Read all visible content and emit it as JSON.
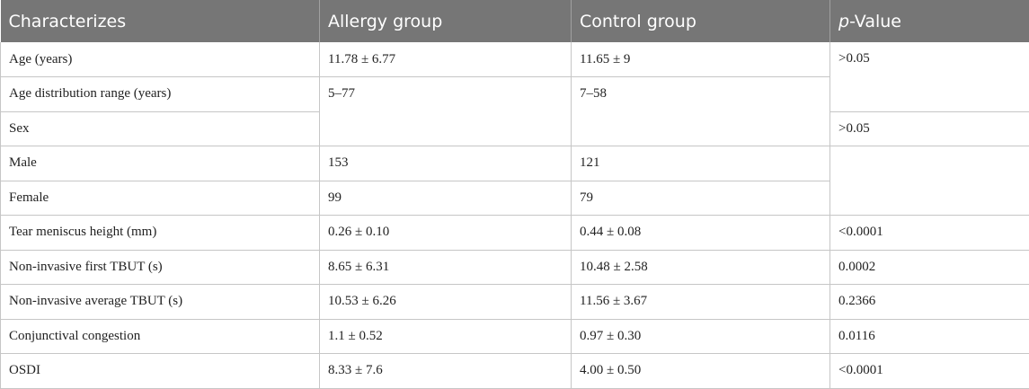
{
  "headers": {
    "characterizes": "Characterizes",
    "allergy": "Allergy group",
    "control": "Control group",
    "p_italic": "p",
    "p_rest": "-Value"
  },
  "rows": {
    "age": {
      "label": "Age (years)",
      "allergy": "11.78 ± 6.77",
      "control": "11.65 ± 9",
      "p": ">0.05"
    },
    "age_range": {
      "label": "Age distribution range (years)",
      "allergy": "5–77",
      "control": "7–58"
    },
    "sex": {
      "label": "Sex",
      "p": ">0.05"
    },
    "male": {
      "label": "Male",
      "allergy": "153",
      "control": "121"
    },
    "female": {
      "label": "Female",
      "allergy": "99",
      "control": "79"
    },
    "tmh": {
      "label": "Tear meniscus height (mm)",
      "allergy": "0.26 ± 0.10",
      "control": "0.44 ± 0.08",
      "p": "<0.0001"
    },
    "first_tbut": {
      "label": "Non-invasive first TBUT (s)",
      "allergy": "8.65 ± 6.31",
      "control": "10.48 ± 2.58",
      "p": "0.0002"
    },
    "avg_tbut": {
      "label": "Non-invasive average TBUT (s)",
      "allergy": "10.53 ± 6.26",
      "control": "11.56 ± 3.67",
      "p": "0.2366"
    },
    "congestion": {
      "label": "Conjunctival congestion",
      "allergy": "1.1 ± 0.52",
      "control": "0.97 ± 0.30",
      "p": "0.0116"
    },
    "osdi": {
      "label": "OSDI",
      "allergy": "8.33 ± 7.6",
      "control": "4.00 ± 0.50",
      "p": "<0.0001"
    }
  }
}
